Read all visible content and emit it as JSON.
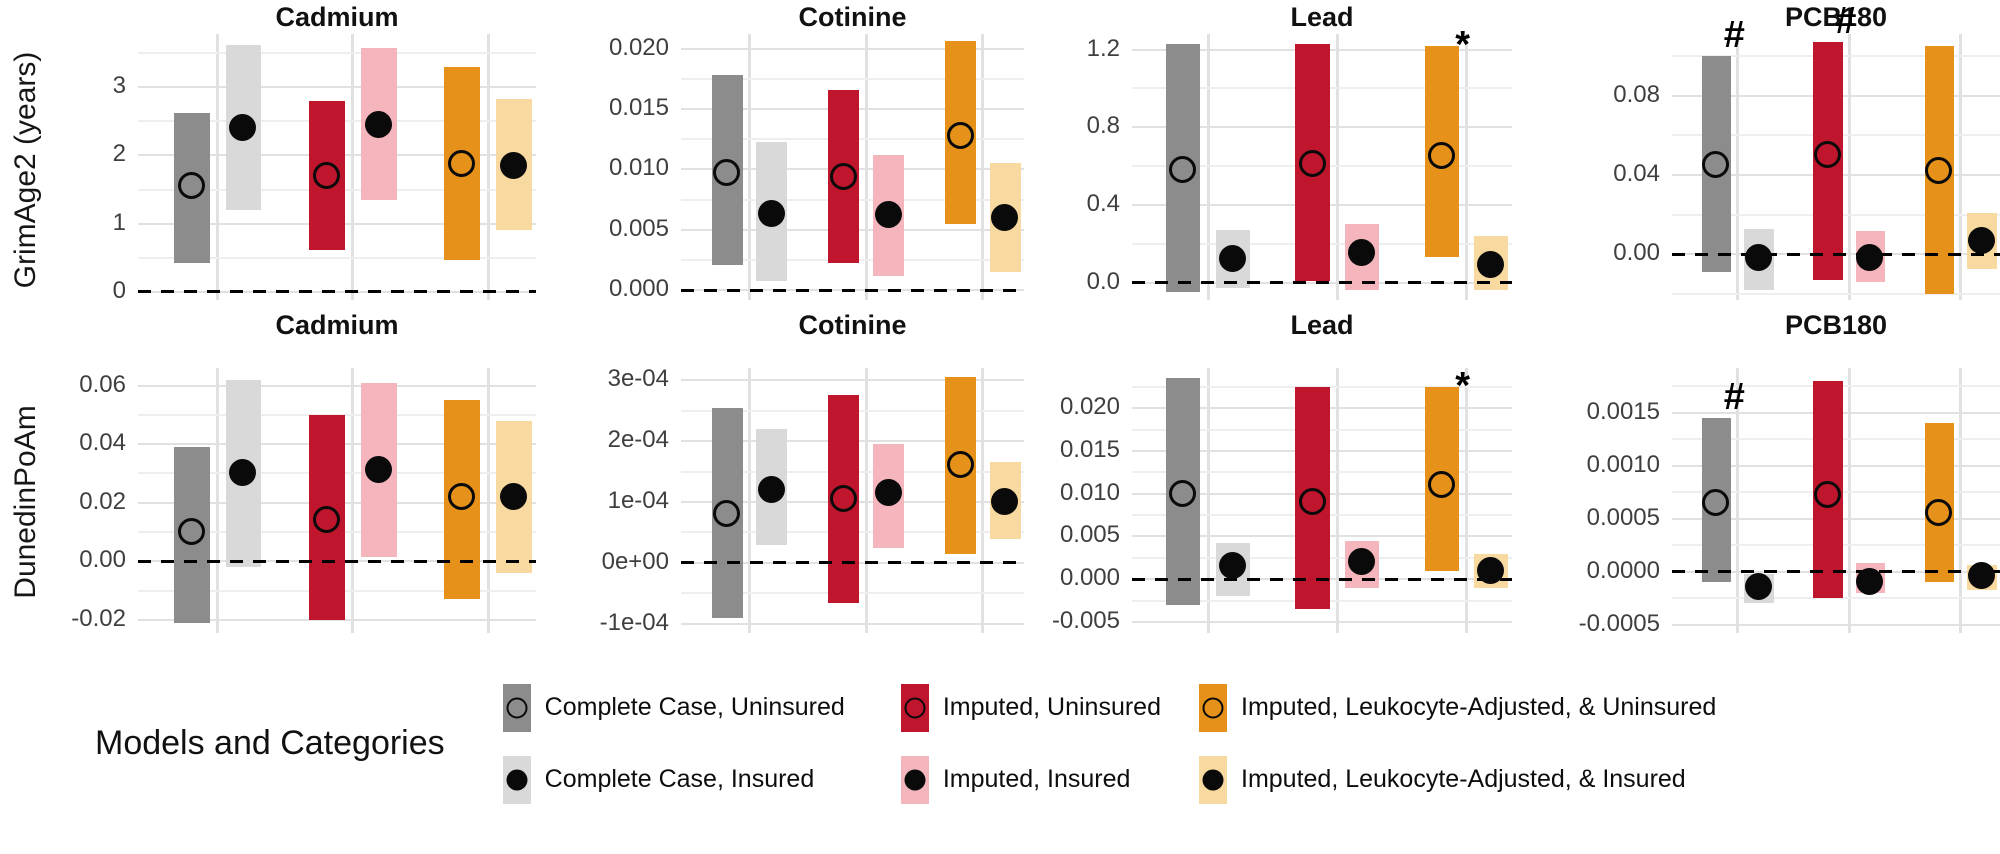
{
  "figure": {
    "row_labels": [
      "GrimAge2 (years)",
      "DunedinPoAm"
    ],
    "colors": {
      "gray": "#8C8C8C",
      "lightgray": "#D9D9D9",
      "red": "#C0162D",
      "pink": "#F4B6BC",
      "orange": "#E6921A",
      "lightorange": "#F8D9A0",
      "point": "#0A0A0A",
      "grid_major": "#E1E1E1",
      "grid_minor": "#EEEEEE"
    },
    "legend": {
      "title": "Models and Categories",
      "columns": [
        {
          "entries": [
            {
              "label": "Complete Case, Uninsured",
              "color_key": "gray",
              "point": "open"
            },
            {
              "label": "Complete Case, Insured",
              "color_key": "lightgray",
              "point": "filled"
            }
          ]
        },
        {
          "entries": [
            {
              "label": "Imputed, Uninsured",
              "color_key": "red",
              "point": "open"
            },
            {
              "label": "Imputed, Insured",
              "color_key": "pink",
              "point": "filled"
            }
          ]
        },
        {
          "entries": [
            {
              "label": "Imputed, Leukocyte-Adjusted, & Uninsured",
              "color_key": "orange",
              "point": "open"
            },
            {
              "label": "Imputed, Leukocyte-Adjusted, & Insured",
              "color_key": "lightorange",
              "point": "filled"
            }
          ]
        }
      ]
    }
  },
  "chart_data": [
    {
      "type": "bar",
      "row": 0,
      "row_label": "GrimAge2 (years)",
      "title": "Cadmium",
      "ylim": [
        -0.12,
        3.78
      ],
      "yticks": [
        {
          "value": 0,
          "label": "0"
        },
        {
          "value": 1,
          "label": "1"
        },
        {
          "value": 2,
          "label": "2"
        },
        {
          "value": 3,
          "label": "3"
        }
      ],
      "yminor": [
        0.5,
        1.5,
        2.5,
        3.5
      ],
      "series": [
        {
          "name": "Complete Case, Uninsured",
          "color_key": "gray",
          "point": "open",
          "low": 0.42,
          "high": 2.62,
          "estimate": 1.55,
          "annotation": ""
        },
        {
          "name": "Complete Case, Insured",
          "color_key": "lightgray",
          "point": "filled",
          "low": 1.2,
          "high": 3.62,
          "estimate": 2.4,
          "annotation": ""
        },
        {
          "name": "Imputed, Uninsured",
          "color_key": "red",
          "point": "open",
          "low": 0.62,
          "high": 2.8,
          "estimate": 1.7,
          "annotation": ""
        },
        {
          "name": "Imputed, Insured",
          "color_key": "pink",
          "point": "filled",
          "low": 1.35,
          "high": 3.58,
          "estimate": 2.45,
          "annotation": ""
        },
        {
          "name": "Imputed, Leukocyte-Adjusted, & Uninsured",
          "color_key": "orange",
          "point": "open",
          "low": 0.47,
          "high": 3.3,
          "estimate": 1.87,
          "annotation": ""
        },
        {
          "name": "Imputed, Leukocyte-Adjusted, & Insured",
          "color_key": "lightorange",
          "point": "filled",
          "low": 0.9,
          "high": 2.83,
          "estimate": 1.85,
          "annotation": ""
        }
      ]
    },
    {
      "type": "bar",
      "row": 0,
      "row_label": "GrimAge2 (years)",
      "title": "Cotinine",
      "ylim": [
        -0.0008,
        0.0212
      ],
      "yticks": [
        {
          "value": 0,
          "label": "0.000"
        },
        {
          "value": 0.005,
          "label": "0.005"
        },
        {
          "value": 0.01,
          "label": "0.010"
        },
        {
          "value": 0.015,
          "label": "0.015"
        },
        {
          "value": 0.02,
          "label": "0.020"
        }
      ],
      "yminor": [
        0.0025,
        0.0075,
        0.0125,
        0.0175
      ],
      "series": [
        {
          "name": "Complete Case, Uninsured",
          "color_key": "gray",
          "point": "open",
          "low": 0.0021,
          "high": 0.0178,
          "estimate": 0.0097,
          "annotation": ""
        },
        {
          "name": "Complete Case, Insured",
          "color_key": "lightgray",
          "point": "filled",
          "low": 0.0008,
          "high": 0.0123,
          "estimate": 0.0063,
          "annotation": ""
        },
        {
          "name": "Imputed, Uninsured",
          "color_key": "red",
          "point": "open",
          "low": 0.0023,
          "high": 0.0166,
          "estimate": 0.0094,
          "annotation": ""
        },
        {
          "name": "Imputed, Insured",
          "color_key": "pink",
          "point": "filled",
          "low": 0.0012,
          "high": 0.0112,
          "estimate": 0.0062,
          "annotation": ""
        },
        {
          "name": "Imputed, Leukocyte-Adjusted, & Uninsured",
          "color_key": "orange",
          "point": "open",
          "low": 0.0055,
          "high": 0.0206,
          "estimate": 0.0128,
          "annotation": ""
        },
        {
          "name": "Imputed, Leukocyte-Adjusted, & Insured",
          "color_key": "lightorange",
          "point": "filled",
          "low": 0.0015,
          "high": 0.0105,
          "estimate": 0.006,
          "annotation": ""
        }
      ]
    },
    {
      "type": "bar",
      "row": 0,
      "row_label": "GrimAge2 (years)",
      "title": "Lead",
      "ylim": [
        -0.09,
        1.28
      ],
      "yticks": [
        {
          "value": 0,
          "label": "0.0"
        },
        {
          "value": 0.4,
          "label": "0.4"
        },
        {
          "value": 0.8,
          "label": "0.8"
        },
        {
          "value": 1.2,
          "label": "1.2"
        }
      ],
      "yminor": [
        0.2,
        0.6,
        1.0
      ],
      "series": [
        {
          "name": "Complete Case, Uninsured",
          "color_key": "gray",
          "point": "open",
          "low": -0.05,
          "high": 1.23,
          "estimate": 0.58,
          "annotation": ""
        },
        {
          "name": "Complete Case, Insured",
          "color_key": "lightgray",
          "point": "filled",
          "low": -0.03,
          "high": 0.27,
          "estimate": 0.12,
          "annotation": ""
        },
        {
          "name": "Imputed, Uninsured",
          "color_key": "red",
          "point": "open",
          "low": 0.01,
          "high": 1.23,
          "estimate": 0.61,
          "annotation": ""
        },
        {
          "name": "Imputed, Insured",
          "color_key": "pink",
          "point": "filled",
          "low": -0.04,
          "high": 0.3,
          "estimate": 0.15,
          "annotation": ""
        },
        {
          "name": "Imputed, Leukocyte-Adjusted, & Uninsured",
          "color_key": "orange",
          "point": "open",
          "low": 0.13,
          "high": 1.22,
          "estimate": 0.65,
          "annotation": "*"
        },
        {
          "name": "Imputed, Leukocyte-Adjusted, & Insured",
          "color_key": "lightorange",
          "point": "filled",
          "low": -0.04,
          "high": 0.24,
          "estimate": 0.09,
          "annotation": ""
        }
      ]
    },
    {
      "type": "bar",
      "row": 0,
      "row_label": "GrimAge2 (years)",
      "title": "PCB180",
      "ylim": [
        -0.023,
        0.111
      ],
      "yticks": [
        {
          "value": 0,
          "label": "0.00"
        },
        {
          "value": 0.04,
          "label": "0.04"
        },
        {
          "value": 0.08,
          "label": "0.08"
        }
      ],
      "yminor": [
        -0.02,
        0.02,
        0.06,
        0.1
      ],
      "series": [
        {
          "name": "Complete Case, Uninsured",
          "color_key": "gray",
          "point": "open",
          "low": -0.009,
          "high": 0.1,
          "estimate": 0.045,
          "annotation": "#"
        },
        {
          "name": "Complete Case, Insured",
          "color_key": "lightgray",
          "point": "filled",
          "low": -0.018,
          "high": 0.013,
          "estimate": -0.002,
          "annotation": ""
        },
        {
          "name": "Imputed, Uninsured",
          "color_key": "red",
          "point": "open",
          "low": -0.013,
          "high": 0.107,
          "estimate": 0.05,
          "annotation": "#"
        },
        {
          "name": "Imputed, Insured",
          "color_key": "pink",
          "point": "filled",
          "low": -0.014,
          "high": 0.012,
          "estimate": -0.002,
          "annotation": ""
        },
        {
          "name": "Imputed, Leukocyte-Adjusted, & Uninsured",
          "color_key": "orange",
          "point": "open",
          "low": -0.02,
          "high": 0.105,
          "estimate": 0.042,
          "annotation": ""
        },
        {
          "name": "Imputed, Leukocyte-Adjusted, & Insured",
          "color_key": "lightorange",
          "point": "filled",
          "low": -0.0075,
          "high": 0.021,
          "estimate": 0.0065,
          "annotation": ""
        }
      ]
    },
    {
      "type": "bar",
      "row": 1,
      "row_label": "DunedinPoAm",
      "title": "Cadmium",
      "ylim": [
        -0.0245,
        0.066
      ],
      "yticks": [
        {
          "value": -0.02,
          "label": "-0.02"
        },
        {
          "value": 0,
          "label": "0.00"
        },
        {
          "value": 0.02,
          "label": "0.02"
        },
        {
          "value": 0.04,
          "label": "0.04"
        },
        {
          "value": 0.06,
          "label": "0.06"
        }
      ],
      "yminor": [
        -0.01,
        0.01,
        0.03,
        0.05
      ],
      "series": [
        {
          "name": "Complete Case, Uninsured",
          "color_key": "gray",
          "point": "open",
          "low": -0.021,
          "high": 0.039,
          "estimate": 0.01,
          "annotation": ""
        },
        {
          "name": "Complete Case, Insured",
          "color_key": "lightgray",
          "point": "filled",
          "low": -0.002,
          "high": 0.062,
          "estimate": 0.03,
          "annotation": ""
        },
        {
          "name": "Imputed, Uninsured",
          "color_key": "red",
          "point": "open",
          "low": -0.02,
          "high": 0.05,
          "estimate": 0.014,
          "annotation": ""
        },
        {
          "name": "Imputed, Insured",
          "color_key": "pink",
          "point": "filled",
          "low": 0.0015,
          "high": 0.061,
          "estimate": 0.031,
          "annotation": ""
        },
        {
          "name": "Imputed, Leukocyte-Adjusted, & Uninsured",
          "color_key": "orange",
          "point": "open",
          "low": -0.013,
          "high": 0.055,
          "estimate": 0.022,
          "annotation": ""
        },
        {
          "name": "Imputed, Leukocyte-Adjusted, & Insured",
          "color_key": "lightorange",
          "point": "filled",
          "low": -0.004,
          "high": 0.048,
          "estimate": 0.022,
          "annotation": ""
        }
      ]
    },
    {
      "type": "bar",
      "row": 1,
      "row_label": "DunedinPoAm",
      "title": "Cotinine",
      "ylim": [
        -0.000115,
        0.00032
      ],
      "yticks": [
        {
          "value": -0.0001,
          "label": "-1e-04"
        },
        {
          "value": 0,
          "label": "0e+00"
        },
        {
          "value": 0.0001,
          "label": "1e-04"
        },
        {
          "value": 0.0002,
          "label": "2e-04"
        },
        {
          "value": 0.0003,
          "label": "3e-04"
        }
      ],
      "yminor": [
        -5e-05,
        5e-05,
        0.00015,
        0.00025
      ],
      "series": [
        {
          "name": "Complete Case, Uninsured",
          "color_key": "gray",
          "point": "open",
          "low": -9e-05,
          "high": 0.000255,
          "estimate": 8e-05,
          "annotation": ""
        },
        {
          "name": "Complete Case, Insured",
          "color_key": "lightgray",
          "point": "filled",
          "low": 3e-05,
          "high": 0.00022,
          "estimate": 0.00012,
          "annotation": ""
        },
        {
          "name": "Imputed, Uninsured",
          "color_key": "red",
          "point": "open",
          "low": -6.5e-05,
          "high": 0.000275,
          "estimate": 0.000105,
          "annotation": ""
        },
        {
          "name": "Imputed, Insured",
          "color_key": "pink",
          "point": "filled",
          "low": 2.5e-05,
          "high": 0.000195,
          "estimate": 0.000115,
          "annotation": ""
        },
        {
          "name": "Imputed, Leukocyte-Adjusted, & Uninsured",
          "color_key": "orange",
          "point": "open",
          "low": 1.5e-05,
          "high": 0.000305,
          "estimate": 0.00016,
          "annotation": ""
        },
        {
          "name": "Imputed, Leukocyte-Adjusted, & Insured",
          "color_key": "lightorange",
          "point": "filled",
          "low": 4e-05,
          "high": 0.000165,
          "estimate": 0.0001,
          "annotation": ""
        }
      ]
    },
    {
      "type": "bar",
      "row": 1,
      "row_label": "DunedinPoAm",
      "title": "Lead",
      "ylim": [
        -0.0063,
        0.0247
      ],
      "yticks": [
        {
          "value": -0.005,
          "label": "-0.005"
        },
        {
          "value": 0,
          "label": "0.000"
        },
        {
          "value": 0.005,
          "label": "0.005"
        },
        {
          "value": 0.01,
          "label": "0.010"
        },
        {
          "value": 0.015,
          "label": "0.015"
        },
        {
          "value": 0.02,
          "label": "0.020"
        }
      ],
      "yminor": [
        -0.0025,
        0.0025,
        0.0075,
        0.0125,
        0.0175,
        0.0225
      ],
      "series": [
        {
          "name": "Complete Case, Uninsured",
          "color_key": "gray",
          "point": "open",
          "low": -0.003,
          "high": 0.0235,
          "estimate": 0.01,
          "annotation": ""
        },
        {
          "name": "Complete Case, Insured",
          "color_key": "lightgray",
          "point": "filled",
          "low": -0.002,
          "high": 0.0042,
          "estimate": 0.0015,
          "annotation": ""
        },
        {
          "name": "Imputed, Uninsured",
          "color_key": "red",
          "point": "open",
          "low": -0.0035,
          "high": 0.0225,
          "estimate": 0.009,
          "annotation": ""
        },
        {
          "name": "Imputed, Insured",
          "color_key": "pink",
          "point": "filled",
          "low": -0.001,
          "high": 0.0045,
          "estimate": 0.002,
          "annotation": ""
        },
        {
          "name": "Imputed, Leukocyte-Adjusted, & Uninsured",
          "color_key": "orange",
          "point": "open",
          "low": 0.001,
          "high": 0.0225,
          "estimate": 0.011,
          "annotation": "*"
        },
        {
          "name": "Imputed, Leukocyte-Adjusted, & Insured",
          "color_key": "lightorange",
          "point": "filled",
          "low": -0.001,
          "high": 0.003,
          "estimate": 0.001,
          "annotation": ""
        }
      ]
    },
    {
      "type": "bar",
      "row": 1,
      "row_label": "DunedinPoAm",
      "title": "PCB180",
      "ylim": [
        -0.00058,
        0.00192
      ],
      "yticks": [
        {
          "value": -0.0005,
          "label": "-0.0005"
        },
        {
          "value": 0,
          "label": "0.0000"
        },
        {
          "value": 0.0005,
          "label": "0.0005"
        },
        {
          "value": 0.001,
          "label": "0.0010"
        },
        {
          "value": 0.0015,
          "label": "0.0015"
        }
      ],
      "yminor": [
        -0.00025,
        0.00025,
        0.00075,
        0.00125,
        0.00175
      ],
      "series": [
        {
          "name": "Complete Case, Uninsured",
          "color_key": "gray",
          "point": "open",
          "low": -0.0001,
          "high": 0.00145,
          "estimate": 0.00065,
          "annotation": "#"
        },
        {
          "name": "Complete Case, Insured",
          "color_key": "lightgray",
          "point": "filled",
          "low": -0.0003,
          "high": -2e-05,
          "estimate": -0.00015,
          "annotation": ""
        },
        {
          "name": "Imputed, Uninsured",
          "color_key": "red",
          "point": "open",
          "low": -0.00025,
          "high": 0.0018,
          "estimate": 0.00072,
          "annotation": ""
        },
        {
          "name": "Imputed, Insured",
          "color_key": "pink",
          "point": "filled",
          "low": -0.0002,
          "high": 8e-05,
          "estimate": -0.0001,
          "annotation": ""
        },
        {
          "name": "Imputed, Leukocyte-Adjusted, & Uninsured",
          "color_key": "orange",
          "point": "open",
          "low": -0.0001,
          "high": 0.0014,
          "estimate": 0.00055,
          "annotation": ""
        },
        {
          "name": "Imputed, Leukocyte-Adjusted, & Insured",
          "color_key": "lightorange",
          "point": "filled",
          "low": -0.00017,
          "high": 6e-05,
          "estimate": -4e-05,
          "annotation": ""
        }
      ]
    }
  ]
}
